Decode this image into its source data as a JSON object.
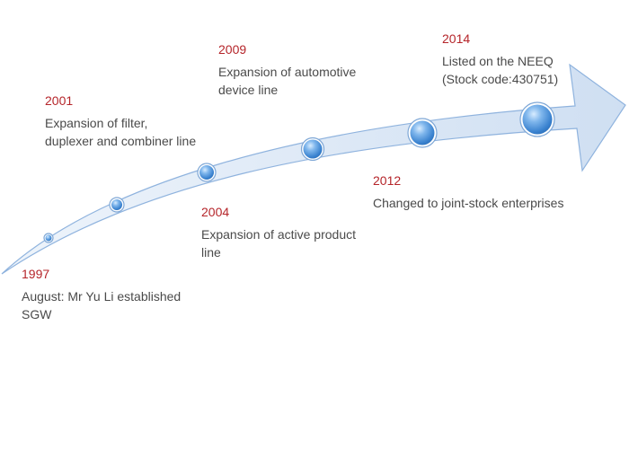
{
  "milestones": [
    {
      "year": "1997",
      "description": "August: Mr Yu Li established\nSGW"
    },
    {
      "year": "2001",
      "description": "Expansion of filter,\nduplexer and combiner line"
    },
    {
      "year": "2004",
      "description": "Expansion of active product\nline"
    },
    {
      "year": "2009",
      "description": "Expansion of automotive\ndevice line"
    },
    {
      "year": "2012",
      "description": "Changed to joint-stock enterprises"
    },
    {
      "year": "2014",
      "description": "Listed on the NEEQ\n(Stock code:430751)"
    }
  ],
  "colors": {
    "year_text": "#b5252a",
    "description_text": "#4a4a4a",
    "arrow_fill": "#dce7f5",
    "arrow_stroke": "#8fb3de",
    "node_fill": "#4a90d9"
  }
}
